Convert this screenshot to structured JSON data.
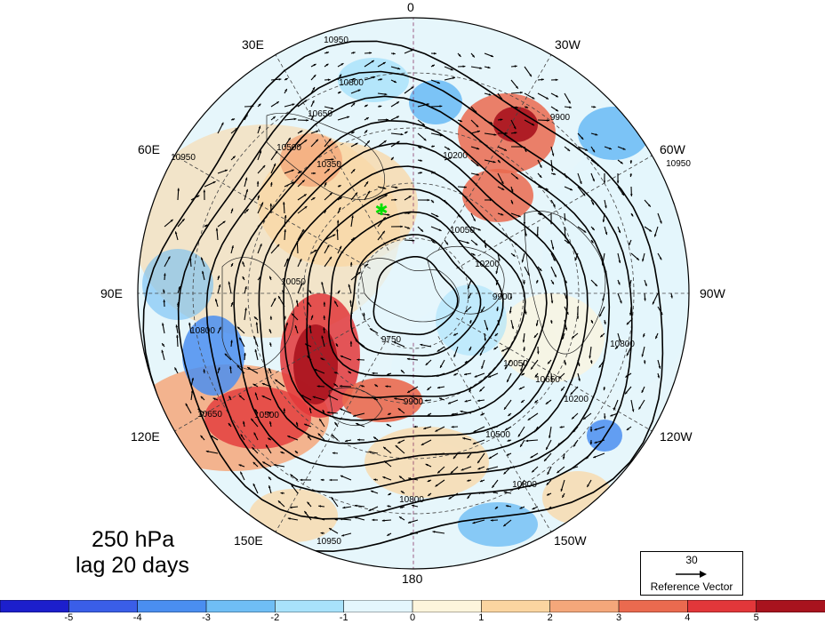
{
  "title": {
    "level": "250 hPa",
    "lag": "lag 20 days"
  },
  "longitude_labels": {
    "lon0": "0",
    "lon30e": "30E",
    "lon60e": "60E",
    "lon90e": "90E",
    "lon120e": "120E",
    "lon150e": "150E",
    "lon180": "180",
    "lon150w": "150W",
    "lon120w": "120W",
    "lon90w": "90W",
    "lon60w": "60W",
    "lon30w": "30W"
  },
  "contour_labels": [
    "10950",
    "10800",
    "10650",
    "10500",
    "10350",
    "10200",
    "10050",
    "9900",
    "9750",
    "10950",
    "10800",
    "10650",
    "10500",
    "10200",
    "10050",
    "9900",
    "10800",
    "10950",
    "10500",
    "10200",
    "10800",
    "10650",
    "10800",
    "10950",
    "10050",
    "9900"
  ],
  "reference_vector": {
    "speed": "30",
    "label": "Reference Vector"
  },
  "colorbar": {
    "ticks": [
      "-5",
      "-4",
      "-3",
      "-2",
      "-1",
      "0",
      "1",
      "2",
      "3",
      "4",
      "5"
    ],
    "colors": [
      "#1c1fcc",
      "#3a5ee8",
      "#4a8ef0",
      "#6fbef5",
      "#a8e2fb",
      "#e4f6fd",
      "#fdf5dc",
      "#fbd5a0",
      "#f4a77a",
      "#ea6a4f",
      "#e2373a",
      "#a8131e"
    ]
  },
  "marker": {
    "color": "#00e000"
  }
}
